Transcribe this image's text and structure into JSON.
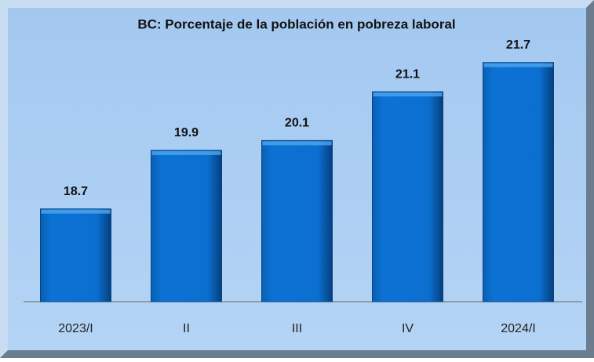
{
  "chart_data": {
    "type": "bar",
    "title": "BC: Porcentaje de la población en pobreza laboral",
    "categories": [
      "2023/I",
      "II",
      "III",
      "IV",
      "2024/I"
    ],
    "values": [
      18.7,
      19.9,
      20.1,
      21.1,
      21.7
    ],
    "color": "#0b6fd0",
    "ylim": [
      16.8,
      22
    ]
  }
}
